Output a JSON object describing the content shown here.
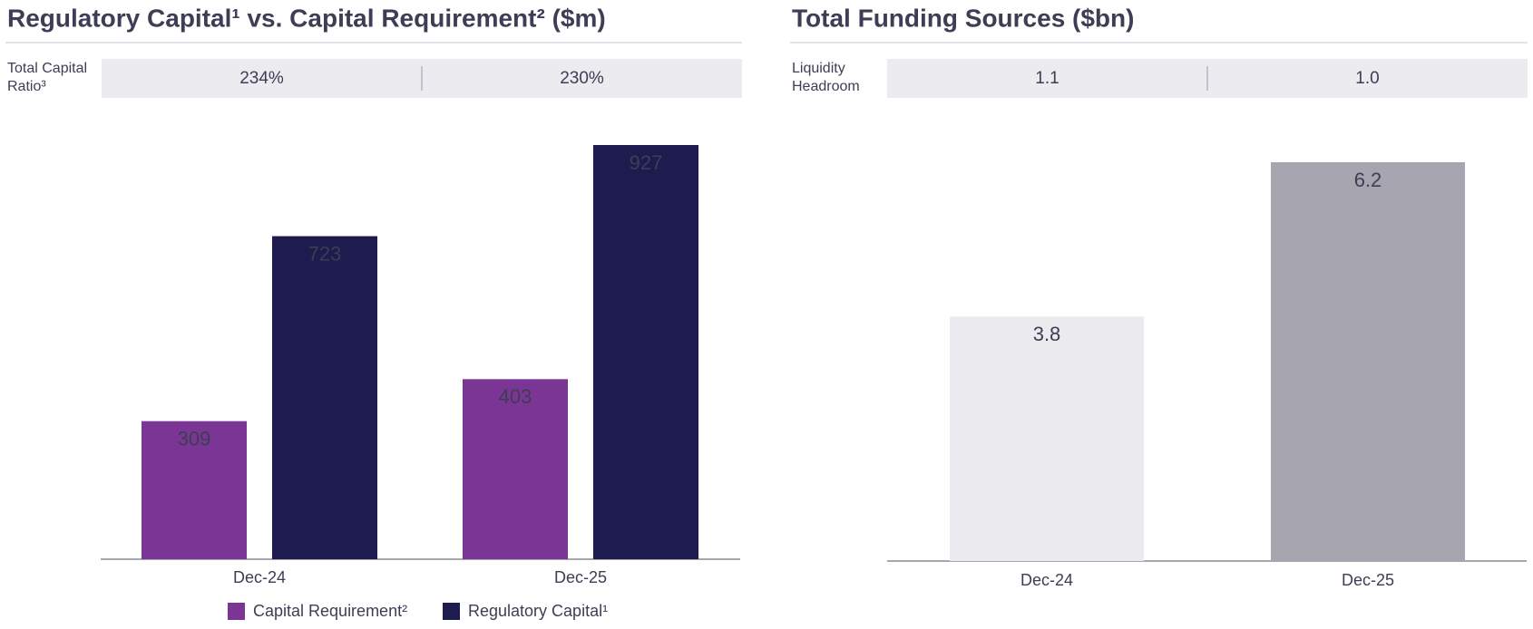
{
  "chart_data": [
    {
      "type": "bar",
      "title": "Regulatory Capital¹ vs. Capital Requirement² ($m)",
      "summary": {
        "label": "Total Capital Ratio³",
        "cells": [
          "234%",
          "230%"
        ]
      },
      "categories": [
        "Dec-24",
        "Dec-25"
      ],
      "series": [
        {
          "name": "Capital Requirement²",
          "color": "#7b3594",
          "values": [
            309,
            403
          ]
        },
        {
          "name": "Regulatory Capital¹",
          "color": "#1e1b4f",
          "values": [
            723,
            927
          ]
        }
      ],
      "legend": "bottom"
    },
    {
      "type": "bar",
      "title": "Total Funding Sources ($bn)",
      "summary": {
        "label": "Liquidity Headroom",
        "cells": [
          "1.1",
          "1.0"
        ]
      },
      "categories": [
        "Dec-24",
        "Dec-25"
      ],
      "values": [
        3.8,
        6.2
      ],
      "colors": [
        "#ebeaef",
        "#a6a5b0"
      ]
    }
  ]
}
